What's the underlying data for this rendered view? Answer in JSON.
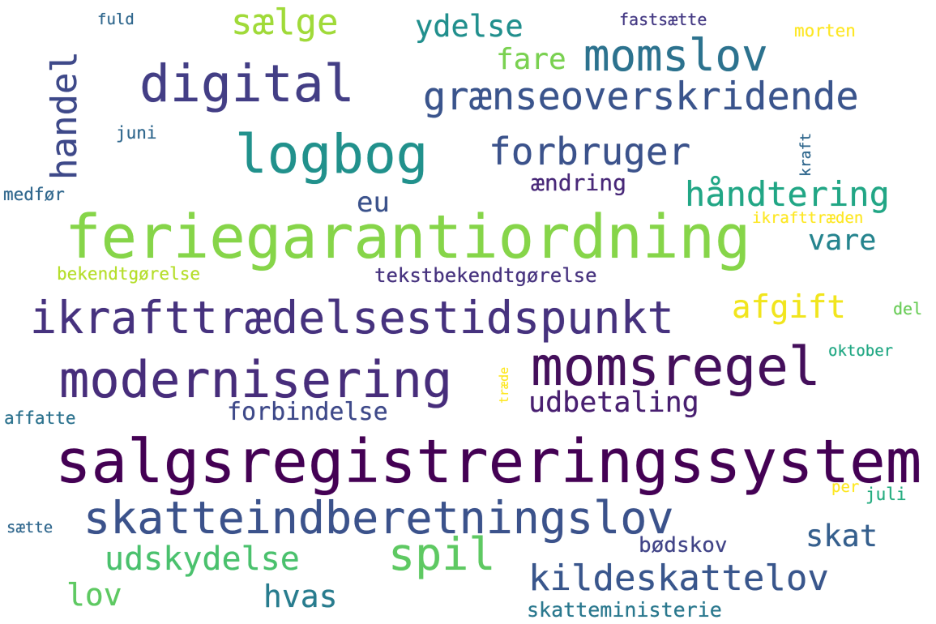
{
  "words": [
    {
      "text": "salgsregistreringssystem",
      "color": "#440154"
    },
    {
      "text": "feriegarantiordning",
      "color": "#86d549"
    },
    {
      "text": "ikrafttrædelsestidspunkt",
      "color": "#46327e"
    },
    {
      "text": "modernisering",
      "color": "#472d7b"
    },
    {
      "text": "momsregel",
      "color": "#440f5b"
    },
    {
      "text": "skatteindberetningslov",
      "color": "#3b528b"
    },
    {
      "text": "logbog",
      "color": "#21918c"
    },
    {
      "text": "digital",
      "color": "#433e85"
    },
    {
      "text": "momslov",
      "color": "#2c728e"
    },
    {
      "text": "grænseoverskridende",
      "color": "#3a548c"
    },
    {
      "text": "forbruger",
      "color": "#3b528b"
    },
    {
      "text": "håndtering",
      "color": "#21a685"
    },
    {
      "text": "kildeskattelov",
      "color": "#39568c"
    },
    {
      "text": "spil",
      "color": "#5ec962"
    },
    {
      "text": "udskydelse",
      "color": "#4ac16d"
    },
    {
      "text": "udbetaling",
      "color": "#481f70"
    },
    {
      "text": "handel",
      "color": "#3e4989"
    },
    {
      "text": "sælge",
      "color": "#a0da39"
    },
    {
      "text": "ydelse",
      "color": "#218f8d"
    },
    {
      "text": "fare",
      "color": "#7ad151"
    },
    {
      "text": "afgift",
      "color": "#f1e51d"
    },
    {
      "text": "vare",
      "color": "#25848e"
    },
    {
      "text": "skat",
      "color": "#355f8d"
    },
    {
      "text": "hvas",
      "color": "#287c8e"
    },
    {
      "text": "lov",
      "color": "#5ec962"
    },
    {
      "text": "eu",
      "color": "#3b528b"
    },
    {
      "text": "forbindelse",
      "color": "#3e4989"
    },
    {
      "text": "tekstbekendtgørelse",
      "color": "#46327e"
    },
    {
      "text": "ændring",
      "color": "#482878"
    },
    {
      "text": "bødskov",
      "color": "#414487"
    },
    {
      "text": "skatteministerie",
      "color": "#2a788e"
    },
    {
      "text": "bekendtgørelse",
      "color": "#b5de2b"
    },
    {
      "text": "ikrafttræden",
      "color": "#fde725"
    },
    {
      "text": "morten",
      "color": "#fde725"
    },
    {
      "text": "fastsætte",
      "color": "#443983"
    },
    {
      "text": "juni",
      "color": "#31688e"
    },
    {
      "text": "medfør",
      "color": "#31688e"
    },
    {
      "text": "fuld",
      "color": "#31688e"
    },
    {
      "text": "affatte",
      "color": "#2c728e"
    },
    {
      "text": "sætte",
      "color": "#31688e"
    },
    {
      "text": "oktober",
      "color": "#22a884"
    },
    {
      "text": "del",
      "color": "#6ccd5a"
    },
    {
      "text": "per",
      "color": "#fde725"
    },
    {
      "text": "juli",
      "color": "#27ad81"
    },
    {
      "text": "kraft",
      "color": "#31688e"
    },
    {
      "text": "træde",
      "color": "#fde725"
    }
  ]
}
